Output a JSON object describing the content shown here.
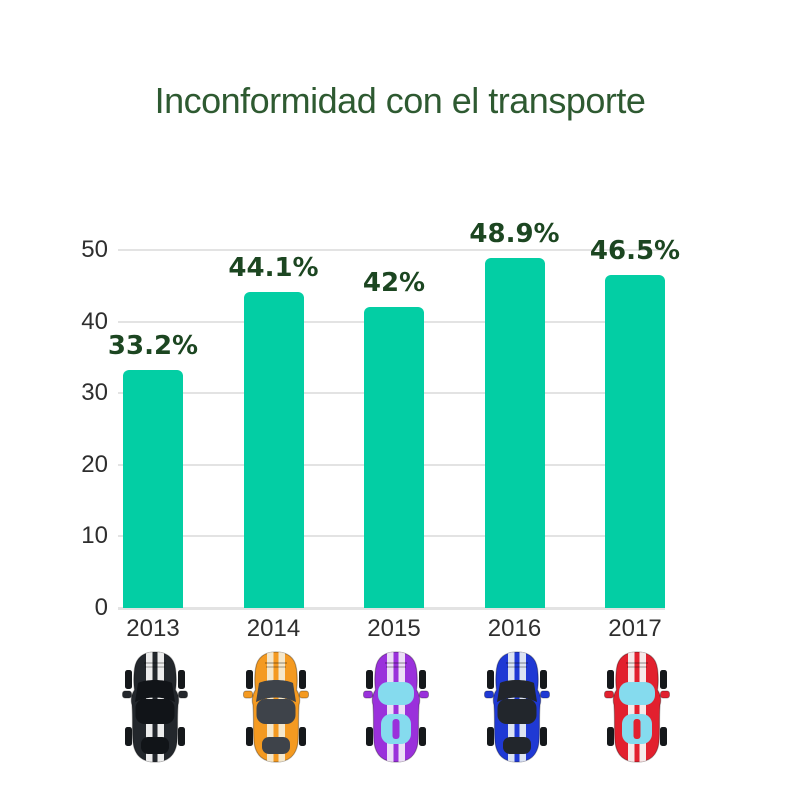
{
  "title": "Inconformidad con el transporte",
  "colors": {
    "background": "#FFFFFF",
    "title": "#2E5A31"
  },
  "chart_data": {
    "type": "bar",
    "title": "Inconformidad con el transporte",
    "categories": [
      "2013",
      "2014",
      "2015",
      "2016",
      "2017"
    ],
    "values": [
      33.2,
      44.1,
      42,
      48.9,
      46.5
    ],
    "value_labels": [
      "33.2%",
      "44.1%",
      "42%",
      "48.9%",
      "46.5%"
    ],
    "xlabel": "",
    "ylabel": "",
    "ylim": [
      0,
      50
    ],
    "yticks": [
      0,
      10,
      20,
      30,
      40,
      50
    ],
    "grid": true,
    "legend": false,
    "bar_color": "#03CEA4",
    "value_label_color": "#1C4621",
    "axis_text_color": "#2E2E2E",
    "gridline_color": "#E3E3E3"
  },
  "cars": [
    {
      "name": "black-car",
      "body": "#23272C",
      "stripe": "#EDEDED",
      "glass": "#111418",
      "glass_style": "dark"
    },
    {
      "name": "orange-car",
      "body": "#F49A21",
      "stripe": "#F4E7CB",
      "glass": "#3E434A",
      "glass_style": "dark"
    },
    {
      "name": "purple-car",
      "body": "#9A31DB",
      "stripe": "#ECDFF6",
      "glass": "#85DBEE",
      "glass_style": "light"
    },
    {
      "name": "blue-car",
      "body": "#1F39D4",
      "stripe": "#DCE3F2",
      "glass": "#22262C",
      "glass_style": "dark"
    },
    {
      "name": "red-car",
      "body": "#E2202E",
      "stripe": "#F6E9E9",
      "glass": "#85DBEE",
      "glass_style": "light"
    }
  ]
}
